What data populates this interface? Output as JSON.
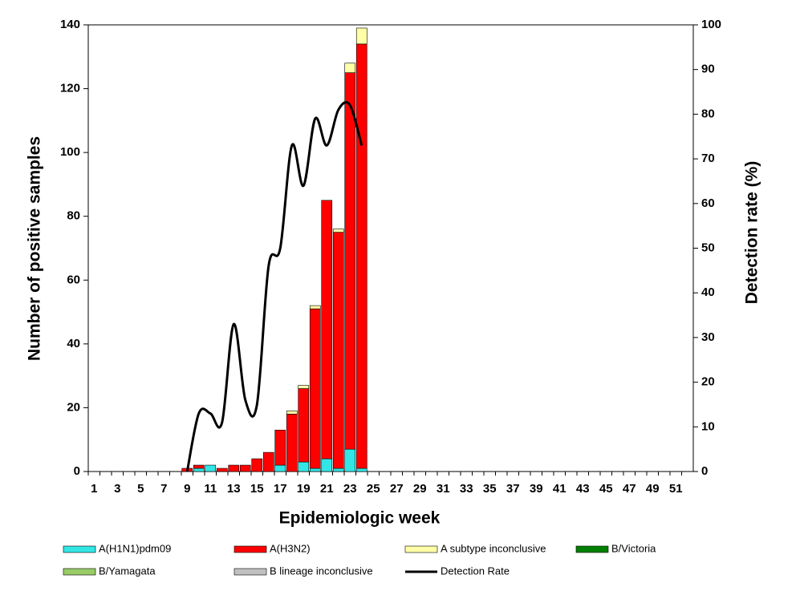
{
  "chart_data": {
    "type": "stacked-bar-line",
    "x_label": "Epidemiologic week",
    "y_label": "Number of positive samples",
    "y2_label": "Detection rate (%)",
    "categories": [
      1,
      null,
      3,
      null,
      5,
      null,
      7,
      null,
      9,
      null,
      11,
      null,
      13,
      null,
      15,
      null,
      17,
      null,
      19,
      null,
      21,
      null,
      23,
      null,
      25,
      null,
      27,
      null,
      29,
      null,
      31,
      null,
      33,
      null,
      35,
      null,
      37,
      null,
      39,
      null,
      41,
      null,
      43,
      null,
      45,
      null,
      47,
      null,
      49,
      null,
      51,
      null
    ],
    "ylim": [
      0,
      140
    ],
    "yticks": [
      0,
      20,
      40,
      60,
      80,
      100,
      120,
      140
    ],
    "y2lim": [
      0,
      100
    ],
    "y2ticks": [
      0,
      10,
      20,
      30,
      40,
      50,
      60,
      70,
      80,
      90,
      100
    ],
    "grid": false,
    "series": [
      {
        "name": "A(H1N1)pdm09",
        "color": "#33e6e6",
        "values": [
          null,
          null,
          null,
          null,
          null,
          null,
          null,
          null,
          0,
          1,
          2,
          0,
          0,
          0,
          0,
          0,
          2,
          0,
          3,
          1,
          4,
          1,
          7,
          1,
          null,
          null,
          null,
          null,
          null,
          null,
          null,
          null,
          null,
          null,
          null,
          null,
          null,
          null,
          null,
          null,
          null,
          null,
          null,
          null,
          null,
          null,
          null,
          null,
          null,
          null,
          null,
          null
        ]
      },
      {
        "name": "A(H3N2)",
        "color": "#ff0000",
        "values": [
          null,
          null,
          null,
          null,
          null,
          null,
          null,
          null,
          1,
          1,
          0,
          1,
          2,
          2,
          4,
          6,
          11,
          18,
          23,
          50,
          81,
          74,
          118,
          133,
          null,
          null,
          null,
          null,
          null,
          null,
          null,
          null,
          null,
          null,
          null,
          null,
          null,
          null,
          null,
          null,
          null,
          null,
          null,
          null,
          null,
          null,
          null,
          null,
          null,
          null,
          null,
          null
        ]
      },
      {
        "name": "A  subtype inconclusive",
        "color": "#ffffa8",
        "values": [
          null,
          null,
          null,
          null,
          null,
          null,
          null,
          null,
          0,
          0,
          0,
          0,
          0,
          0,
          0,
          0,
          0,
          1,
          1,
          1,
          0,
          1,
          3,
          5,
          null,
          null,
          null,
          null,
          null,
          null,
          null,
          null,
          null,
          null,
          null,
          null,
          null,
          null,
          null,
          null,
          null,
          null,
          null,
          null,
          null,
          null,
          null,
          null,
          null,
          null,
          null,
          null
        ]
      },
      {
        "name": "B/Victoria",
        "color": "#008000",
        "values": [
          null,
          null,
          null,
          null,
          null,
          null,
          null,
          null,
          0,
          0,
          0,
          0,
          0,
          0,
          0,
          0,
          0,
          0,
          0,
          0,
          0,
          0,
          0,
          0,
          null,
          null,
          null,
          null,
          null,
          null,
          null,
          null,
          null,
          null,
          null,
          null,
          null,
          null,
          null,
          null,
          null,
          null,
          null,
          null,
          null,
          null,
          null,
          null,
          null,
          null,
          null,
          null
        ]
      },
      {
        "name": "B/Yamagata",
        "color": "#99cc66",
        "values": [
          null,
          null,
          null,
          null,
          null,
          null,
          null,
          null,
          0,
          0,
          0,
          0,
          0,
          0,
          0,
          0,
          0,
          0,
          0,
          0,
          0,
          0,
          0,
          0,
          null,
          null,
          null,
          null,
          null,
          null,
          null,
          null,
          null,
          null,
          null,
          null,
          null,
          null,
          null,
          null,
          null,
          null,
          null,
          null,
          null,
          null,
          null,
          null,
          null,
          null,
          null,
          null
        ]
      },
      {
        "name": "B lineage inconclusive",
        "color": "#c0c0c0",
        "values": [
          null,
          null,
          null,
          null,
          null,
          null,
          null,
          null,
          0,
          0,
          0,
          0,
          0,
          0,
          0,
          0,
          0,
          0,
          0,
          0,
          0,
          0,
          0,
          0,
          null,
          null,
          null,
          null,
          null,
          null,
          null,
          null,
          null,
          null,
          null,
          null,
          null,
          null,
          null,
          null,
          null,
          null,
          null,
          null,
          null,
          null,
          null,
          null,
          null,
          null,
          null,
          null
        ]
      },
      {
        "name": "Detection Rate",
        "color": "#000000",
        "type": "line",
        "axis": "y2",
        "values": [
          null,
          null,
          null,
          null,
          null,
          null,
          null,
          null,
          0,
          13,
          13,
          11,
          33,
          16,
          15,
          46,
          50,
          73,
          64,
          79,
          73,
          81,
          82,
          73,
          null,
          null,
          null,
          null,
          null,
          null,
          null,
          null,
          null,
          null,
          null,
          null,
          null,
          null,
          null,
          null,
          null,
          null,
          null,
          null,
          null,
          null,
          null,
          null,
          null,
          null,
          null,
          null
        ]
      }
    ]
  }
}
